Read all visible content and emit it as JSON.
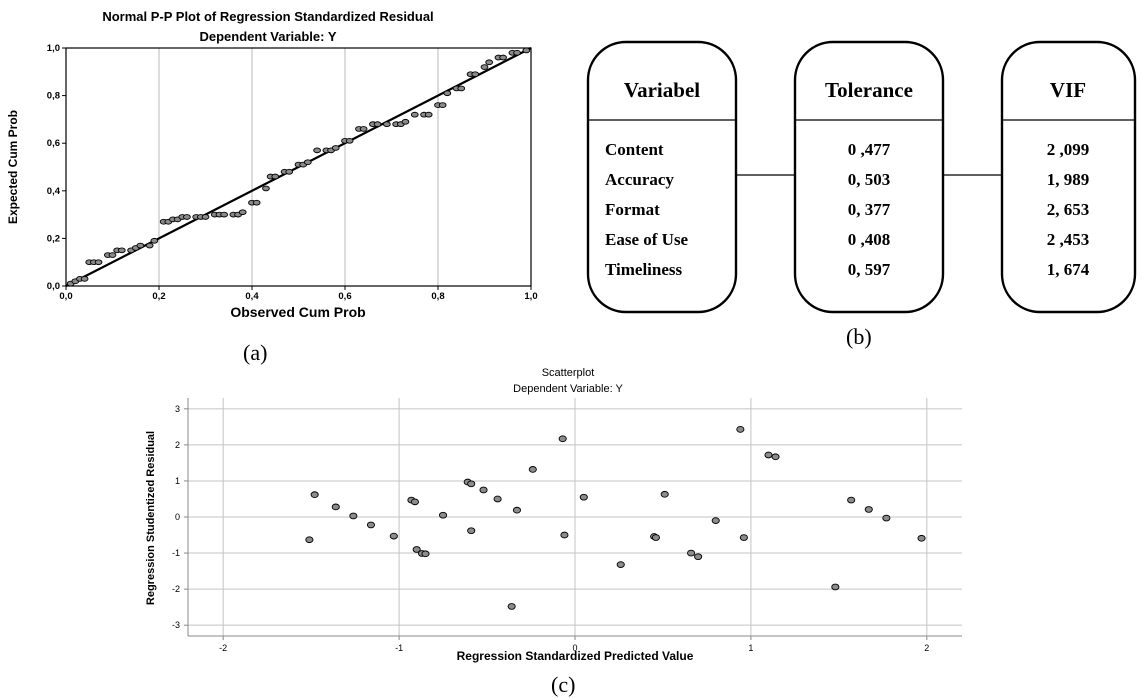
{
  "pp_plot": {
    "title": "Normal P-P Plot of Regression Standardized Residual",
    "subtitle": "Dependent Variable: Y",
    "xlabel": "Observed Cum Prob",
    "ylabel": "Expected Cum Prob",
    "ticks": [
      "0,0",
      "0,2",
      "0,4",
      "0,6",
      "0,8",
      "1,0"
    ]
  },
  "vif_table": {
    "columns": [
      {
        "header": "Variabel",
        "rows": [
          "Content",
          "Accuracy",
          "Format",
          "Ease of Use",
          "Timeliness"
        ]
      },
      {
        "header": "Tolerance",
        "rows": [
          "0 ,477",
          "0, 503",
          "0, 377",
          "0 ,408",
          "0, 597"
        ]
      },
      {
        "header": "VIF",
        "rows": [
          "2 ,099",
          "1, 989",
          "2, 653",
          "2 ,453",
          "1, 674"
        ]
      }
    ]
  },
  "scatter": {
    "title": "Scatterplot",
    "subtitle": "Dependent Variable: Y",
    "xlabel": "Regression Standardized Predicted Value",
    "ylabel": "Regression Studentized Residual",
    "xticks": [
      "-2",
      "-1",
      "0",
      "1",
      "2"
    ],
    "yticks": [
      "3",
      "2",
      "1",
      "0",
      "-1",
      "-2",
      "-3"
    ]
  },
  "labels": {
    "a": "(a)",
    "b": "(b)",
    "c": "(c)"
  },
  "chart_data": [
    {
      "type": "scatter",
      "title": "Normal P-P Plot of Regression Standardized Residual",
      "subtitle": "Dependent Variable: Y",
      "xlabel": "Observed Cum Prob",
      "ylabel": "Expected Cum Prob",
      "xlim": [
        0,
        1
      ],
      "ylim": [
        0,
        1
      ],
      "grid": "vertical",
      "reference_line": [
        [
          0,
          0
        ],
        [
          1,
          1
        ]
      ],
      "points": [
        [
          0.01,
          0.01
        ],
        [
          0.02,
          0.02
        ],
        [
          0.03,
          0.03
        ],
        [
          0.04,
          0.03
        ],
        [
          0.05,
          0.1
        ],
        [
          0.06,
          0.1
        ],
        [
          0.07,
          0.1
        ],
        [
          0.09,
          0.13
        ],
        [
          0.1,
          0.13
        ],
        [
          0.11,
          0.15
        ],
        [
          0.12,
          0.15
        ],
        [
          0.14,
          0.15
        ],
        [
          0.15,
          0.16
        ],
        [
          0.16,
          0.17
        ],
        [
          0.18,
          0.17
        ],
        [
          0.19,
          0.19
        ],
        [
          0.21,
          0.27
        ],
        [
          0.22,
          0.27
        ],
        [
          0.23,
          0.28
        ],
        [
          0.24,
          0.28
        ],
        [
          0.25,
          0.29
        ],
        [
          0.26,
          0.29
        ],
        [
          0.28,
          0.29
        ],
        [
          0.29,
          0.29
        ],
        [
          0.3,
          0.29
        ],
        [
          0.32,
          0.3
        ],
        [
          0.33,
          0.3
        ],
        [
          0.34,
          0.3
        ],
        [
          0.36,
          0.3
        ],
        [
          0.37,
          0.3
        ],
        [
          0.38,
          0.31
        ],
        [
          0.4,
          0.35
        ],
        [
          0.41,
          0.35
        ],
        [
          0.43,
          0.41
        ],
        [
          0.44,
          0.46
        ],
        [
          0.45,
          0.46
        ],
        [
          0.47,
          0.48
        ],
        [
          0.48,
          0.48
        ],
        [
          0.5,
          0.51
        ],
        [
          0.51,
          0.51
        ],
        [
          0.52,
          0.52
        ],
        [
          0.54,
          0.57
        ],
        [
          0.56,
          0.57
        ],
        [
          0.57,
          0.57
        ],
        [
          0.58,
          0.58
        ],
        [
          0.6,
          0.61
        ],
        [
          0.61,
          0.61
        ],
        [
          0.63,
          0.66
        ],
        [
          0.64,
          0.66
        ],
        [
          0.66,
          0.68
        ],
        [
          0.67,
          0.68
        ],
        [
          0.69,
          0.68
        ],
        [
          0.71,
          0.68
        ],
        [
          0.72,
          0.68
        ],
        [
          0.73,
          0.69
        ],
        [
          0.75,
          0.72
        ],
        [
          0.77,
          0.72
        ],
        [
          0.78,
          0.72
        ],
        [
          0.8,
          0.76
        ],
        [
          0.81,
          0.76
        ],
        [
          0.82,
          0.81
        ],
        [
          0.84,
          0.83
        ],
        [
          0.85,
          0.83
        ],
        [
          0.87,
          0.89
        ],
        [
          0.88,
          0.89
        ],
        [
          0.9,
          0.92
        ],
        [
          0.91,
          0.94
        ],
        [
          0.93,
          0.96
        ],
        [
          0.94,
          0.96
        ],
        [
          0.96,
          0.98
        ],
        [
          0.97,
          0.98
        ],
        [
          0.99,
          0.99
        ]
      ]
    },
    {
      "type": "table",
      "columns": [
        "Variabel",
        "Tolerance",
        "VIF"
      ],
      "rows": [
        [
          "Content",
          "0 ,477",
          "2 ,099"
        ],
        [
          "Accuracy",
          "0, 503",
          "1, 989"
        ],
        [
          "Format",
          "0, 377",
          "2, 653"
        ],
        [
          "Ease of Use",
          "0 ,408",
          "2 ,453"
        ],
        [
          "Timeliness",
          "0, 597",
          "1, 674"
        ]
      ]
    },
    {
      "type": "scatter",
      "title": "Scatterplot",
      "subtitle": "Dependent Variable: Y",
      "xlabel": "Regression Standardized Predicted Value",
      "ylabel": "Regression Studentized Residual",
      "xlim": [
        -2.2,
        2.2
      ],
      "ylim": [
        -3.3,
        3.3
      ],
      "grid": "both",
      "points": [
        [
          -1.51,
          -0.63
        ],
        [
          -1.48,
          0.62
        ],
        [
          -1.36,
          0.28
        ],
        [
          -1.26,
          0.03
        ],
        [
          -1.16,
          -0.22
        ],
        [
          -1.03,
          -0.53
        ],
        [
          -0.93,
          0.47
        ],
        [
          -0.91,
          0.42
        ],
        [
          -0.9,
          -0.9
        ],
        [
          -0.87,
          -1.01
        ],
        [
          -0.85,
          -1.02
        ],
        [
          -0.75,
          0.05
        ],
        [
          -0.61,
          0.97
        ],
        [
          -0.59,
          0.92
        ],
        [
          -0.59,
          -0.38
        ],
        [
          -0.52,
          0.75
        ],
        [
          -0.44,
          0.5
        ],
        [
          -0.36,
          -2.48
        ],
        [
          -0.33,
          0.19
        ],
        [
          -0.24,
          1.32
        ],
        [
          -0.07,
          2.17
        ],
        [
          -0.06,
          -0.5
        ],
        [
          0.05,
          0.55
        ],
        [
          0.26,
          -1.32
        ],
        [
          0.45,
          -0.54
        ],
        [
          0.46,
          -0.57
        ],
        [
          0.51,
          0.63
        ],
        [
          0.66,
          -1.0
        ],
        [
          0.7,
          -1.1
        ],
        [
          0.8,
          -0.1
        ],
        [
          0.94,
          2.43
        ],
        [
          0.96,
          -0.57
        ],
        [
          1.1,
          1.72
        ],
        [
          1.14,
          1.67
        ],
        [
          1.48,
          -1.94
        ],
        [
          1.57,
          0.47
        ],
        [
          1.67,
          0.21
        ],
        [
          1.77,
          -0.03
        ],
        [
          1.97,
          -0.59
        ]
      ]
    }
  ]
}
